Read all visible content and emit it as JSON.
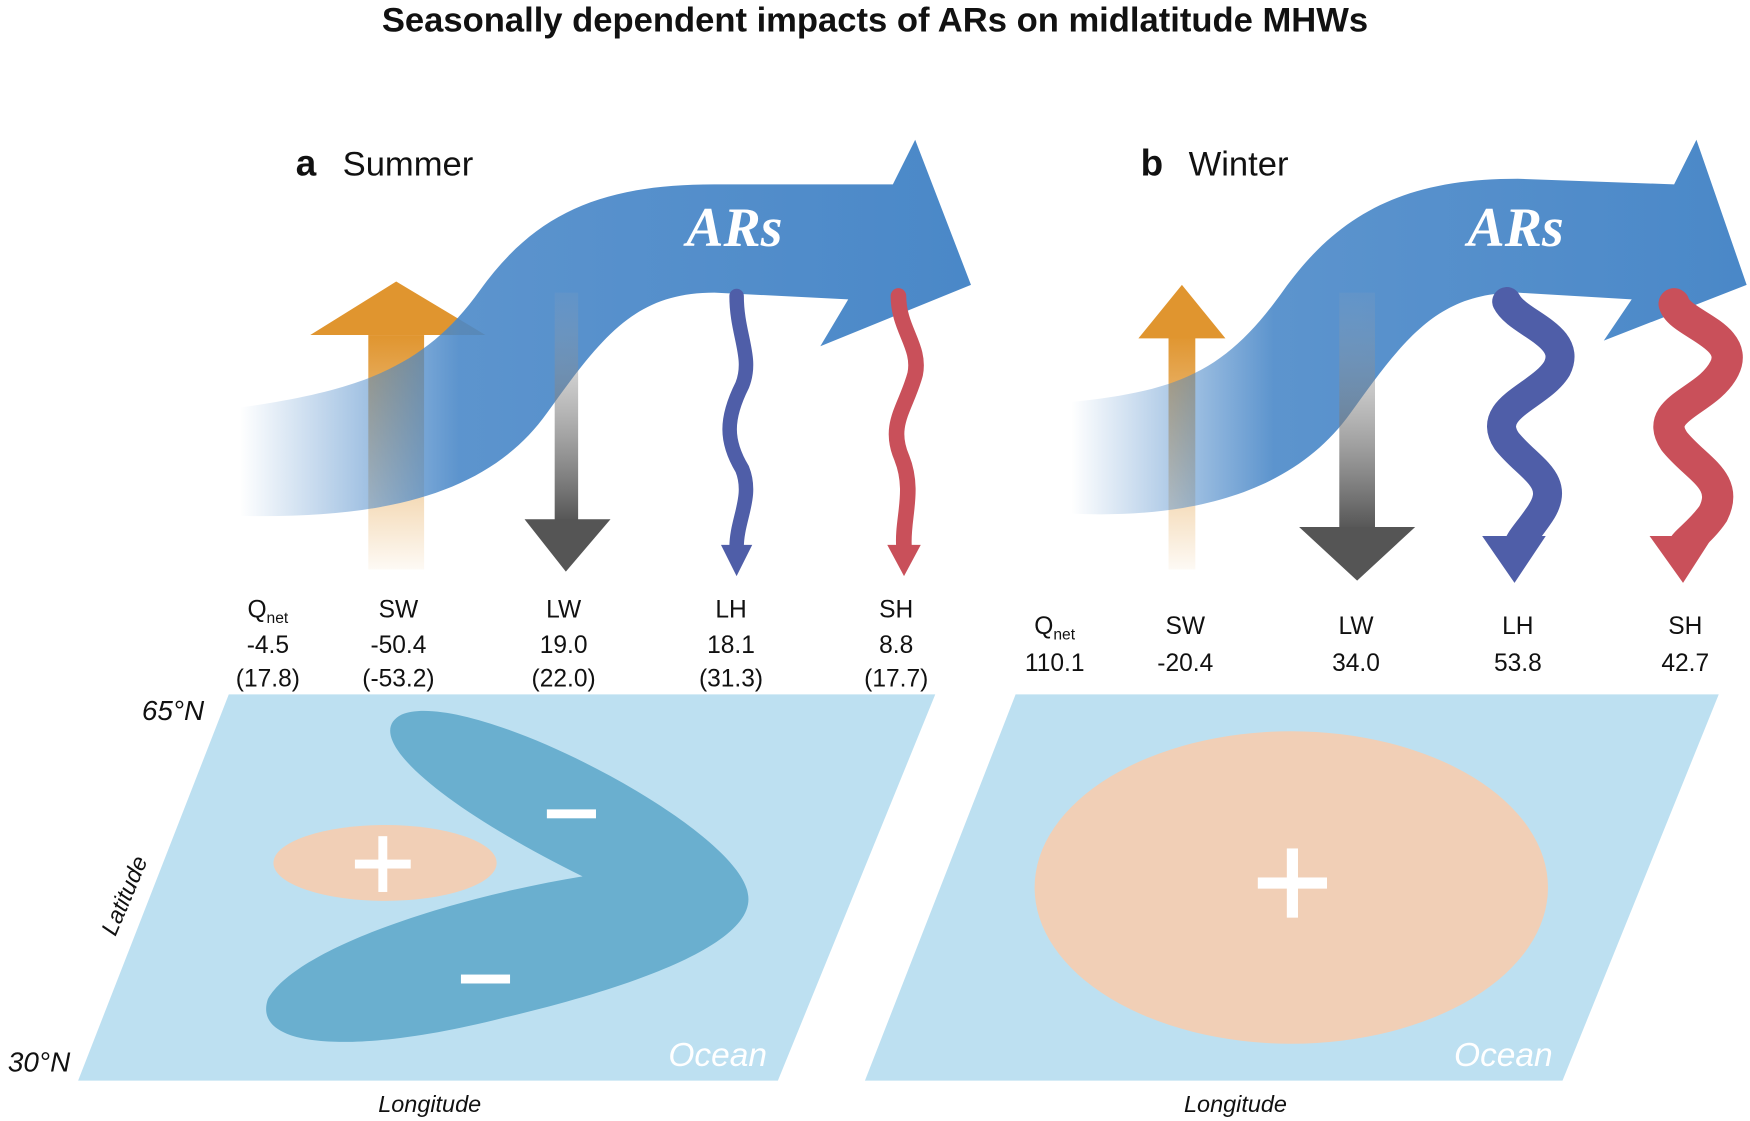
{
  "title": "Seasonally dependent impacts of ARs on midlatitude MHWs",
  "panels": [
    {
      "label": "a",
      "season": "Summer",
      "arrow_label": "ARs",
      "fluxes": [
        {
          "name": "Q",
          "subscript": "net",
          "value": "-4.5",
          "alt": "(17.8)"
        },
        {
          "name": "SW",
          "value": "-50.4",
          "alt": "(-53.2)"
        },
        {
          "name": "LW",
          "value": "19.0",
          "alt": "(22.0)"
        },
        {
          "name": "LH",
          "value": "18.1",
          "alt": "(31.3)"
        },
        {
          "name": "SH",
          "value": "8.8",
          "alt": "(17.7)"
        }
      ],
      "lat_top": "65°N",
      "lat_bottom": "30°N",
      "lat_axis": "Latitude",
      "lon_axis": "Longitude",
      "ocean": "Ocean"
    },
    {
      "label": "b",
      "season": "Winter",
      "arrow_label": "ARs",
      "fluxes": [
        {
          "name": "Q",
          "subscript": "net",
          "value": "110.1"
        },
        {
          "name": "SW",
          "value": "-20.4"
        },
        {
          "name": "LW",
          "value": "34.0"
        },
        {
          "name": "LH",
          "value": "53.8"
        },
        {
          "name": "SH",
          "value": "42.7"
        }
      ],
      "lon_axis": "Longitude",
      "ocean": "Ocean"
    }
  ]
}
